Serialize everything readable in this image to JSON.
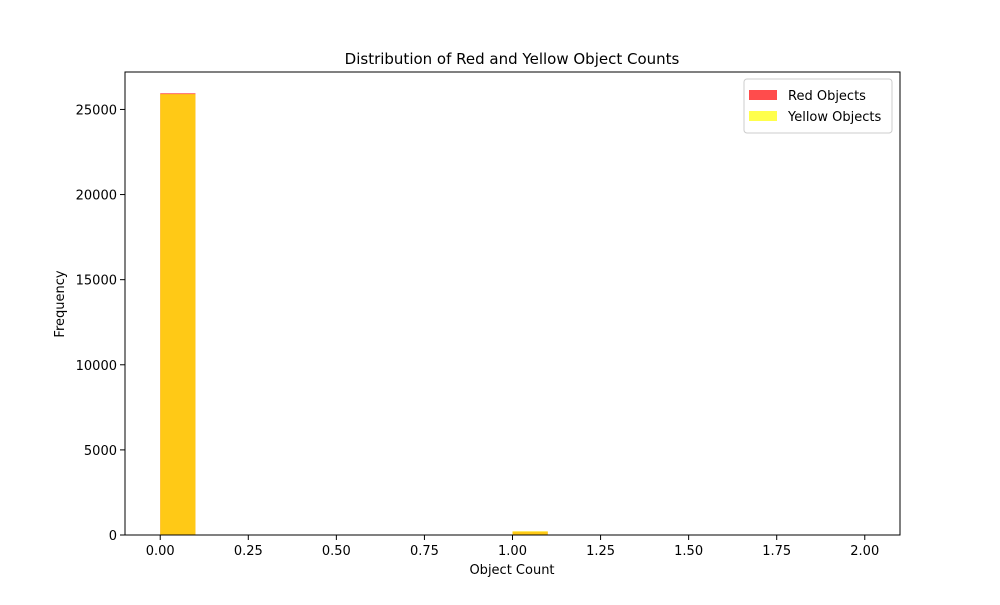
{
  "chart_data": {
    "type": "bar",
    "title": "Distribution of Red and Yellow Object Counts",
    "xlabel": "Object Count",
    "ylabel": "Frequency",
    "xlim": [
      -0.1,
      2.1
    ],
    "ylim": [
      0,
      27200
    ],
    "xticks": [
      0.0,
      0.25,
      0.5,
      0.75,
      1.0,
      1.25,
      1.5,
      1.75,
      2.0
    ],
    "xtick_labels": [
      "0.00",
      "0.25",
      "0.50",
      "0.75",
      "1.00",
      "1.25",
      "1.50",
      "1.75",
      "2.00"
    ],
    "yticks": [
      0,
      5000,
      10000,
      15000,
      20000,
      25000
    ],
    "ytick_labels": [
      "0",
      "5000",
      "10000",
      "15000",
      "20000",
      "25000"
    ],
    "bin_width": 0.1,
    "grid": false,
    "legend_position": "top-right",
    "series": [
      {
        "name": "Red Objects",
        "color": "#ff0000",
        "alpha": 0.7,
        "bins": [
          {
            "x": 0.0,
            "count": 25950
          },
          {
            "x": 1.0,
            "count": 200
          },
          {
            "x": 1.9,
            "count": 0
          }
        ]
      },
      {
        "name": "Yellow Objects",
        "color": "#ffff00",
        "alpha": 0.7,
        "bins": [
          {
            "x": 0.0,
            "count": 25900
          },
          {
            "x": 1.0,
            "count": 220
          },
          {
            "x": 1.9,
            "count": 0
          }
        ]
      }
    ]
  }
}
